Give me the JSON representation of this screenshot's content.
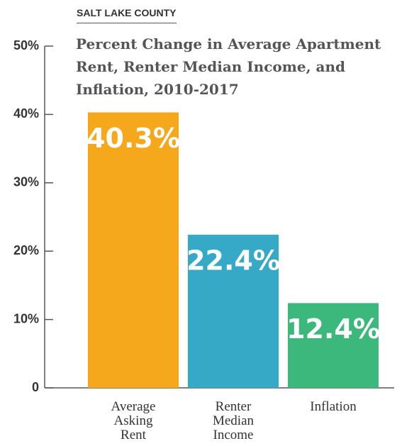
{
  "chart_data": {
    "type": "bar",
    "subtitle": "SALT LAKE COUNTY",
    "title": "Percent Change in Average Apartment Rent, Renter Median Income, and Inflation, 2010-2017",
    "categories": [
      "Average Asking Rent",
      "Renter Median Income",
      "Inflation"
    ],
    "values": [
      40.3,
      22.4,
      12.4
    ],
    "value_labels": [
      "40.3%",
      "22.4%",
      "12.4%"
    ],
    "colors": [
      "#f6a81d",
      "#36a9c7",
      "#3cb87c"
    ],
    "ylim": [
      0,
      50
    ],
    "yticks": [
      0,
      {
        "value": 10,
        "label": "10%"
      },
      {
        "value": 20,
        "label": "20%"
      },
      {
        "value": 30,
        "label": "30%"
      },
      {
        "value": 40,
        "label": "40%"
      },
      {
        "value": 50,
        "label": "50%"
      }
    ],
    "grid": false
  }
}
